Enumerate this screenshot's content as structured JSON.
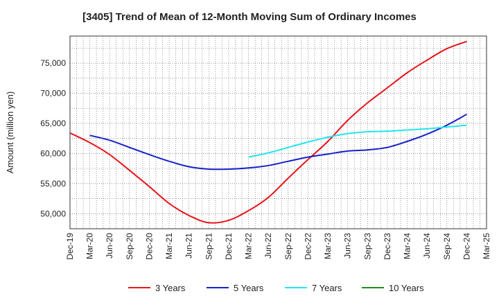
{
  "chart_data": {
    "type": "line",
    "title": "[3405]  Trend of Mean of 12-Month Moving Sum of Ordinary Incomes",
    "xlabel": "",
    "ylabel": "Amount (million yen)",
    "ylim": [
      47500,
      79500
    ],
    "yticks": [
      50000,
      55000,
      60000,
      65000,
      70000,
      75000
    ],
    "ytick_labels": [
      "50,000",
      "55,000",
      "60,000",
      "65,000",
      "70,000",
      "75,000"
    ],
    "categories": [
      "Dec-19",
      "Mar-20",
      "Jun-20",
      "Sep-20",
      "Dec-20",
      "Mar-21",
      "Jun-21",
      "Sep-21",
      "Dec-21",
      "Mar-22",
      "Jun-22",
      "Sep-22",
      "Dec-22",
      "Mar-23",
      "Jun-23",
      "Sep-23",
      "Dec-23",
      "Mar-24",
      "Jun-24",
      "Sep-24",
      "Dec-24",
      "Mar-25"
    ],
    "grid": true,
    "legend_position": "bottom",
    "series": [
      {
        "name": "3 Years",
        "color": "#e8141a",
        "values": [
          63400,
          61800,
          59800,
          57200,
          54500,
          51700,
          49700,
          48500,
          48900,
          50500,
          52700,
          55900,
          59000,
          62000,
          65500,
          68400,
          70900,
          73400,
          75500,
          77400,
          78600,
          null
        ]
      },
      {
        "name": "5 Years",
        "color": "#1520c8",
        "values": [
          null,
          63000,
          62200,
          61000,
          59800,
          58700,
          57800,
          57400,
          57400,
          57600,
          58000,
          58700,
          59400,
          59900,
          60400,
          60600,
          61000,
          62000,
          63200,
          64700,
          66500,
          null
        ]
      },
      {
        "name": "7 Years",
        "color": "#22e6ec",
        "values": [
          null,
          null,
          null,
          null,
          null,
          null,
          null,
          null,
          null,
          59400,
          60100,
          61000,
          61900,
          62700,
          63300,
          63600,
          63700,
          63900,
          64100,
          64400,
          64700,
          null
        ]
      },
      {
        "name": "10 Years",
        "color": "#1f8a1f",
        "values": [
          null,
          null,
          null,
          null,
          null,
          null,
          null,
          null,
          null,
          null,
          null,
          null,
          null,
          null,
          null,
          null,
          null,
          null,
          null,
          null,
          null,
          null
        ]
      }
    ]
  }
}
